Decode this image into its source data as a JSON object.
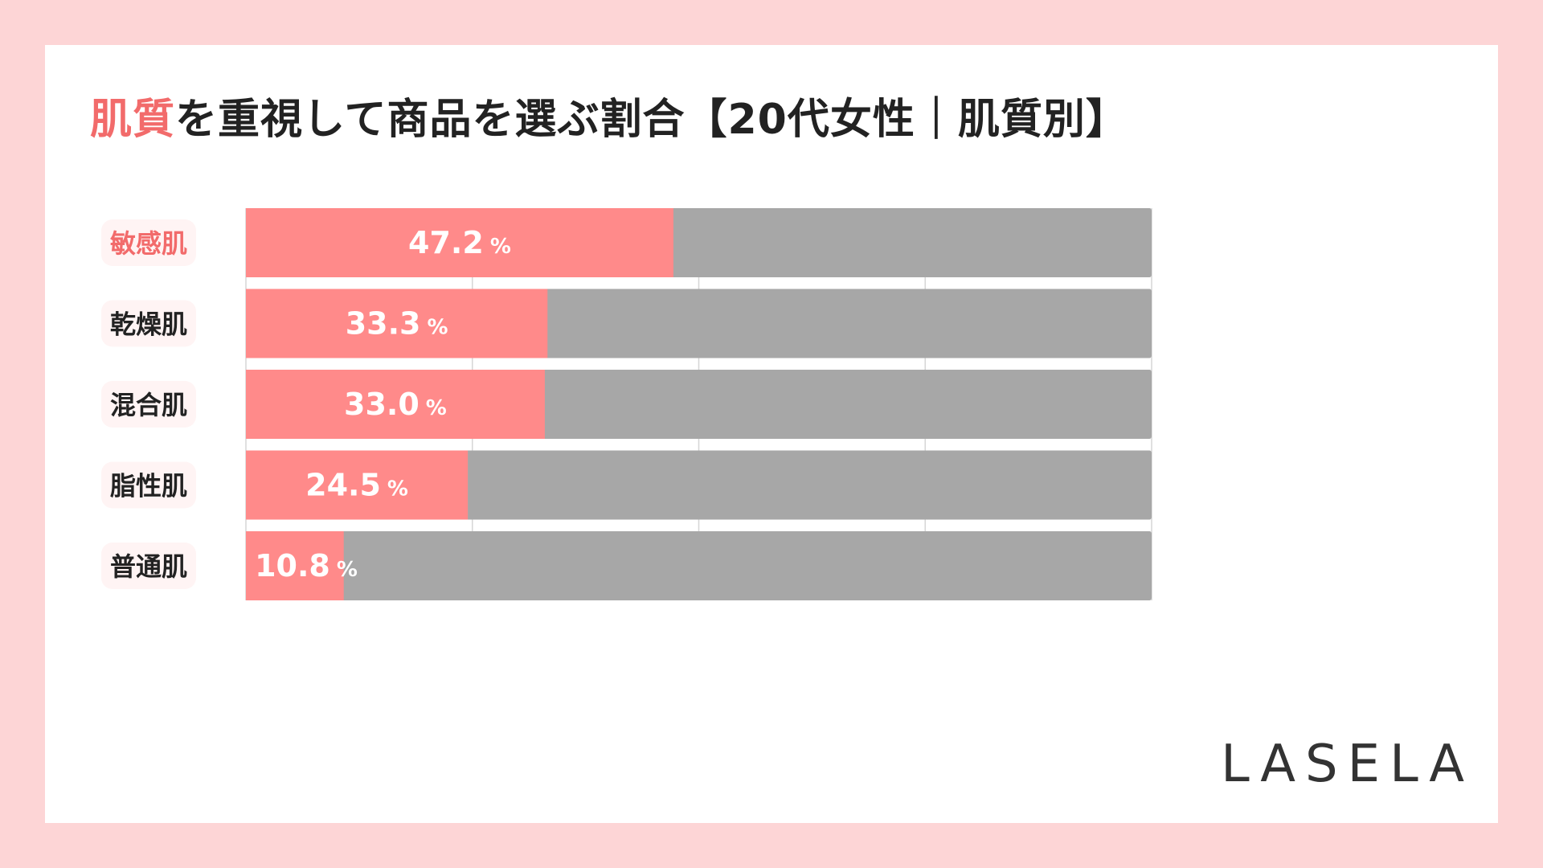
{
  "title": {
    "accent": "肌質",
    "rest": "を重視して商品を選ぶ割合【20代女性｜肌質別】"
  },
  "chart_data": {
    "type": "bar",
    "orientation": "horizontal",
    "stacked_to": 100,
    "categories": [
      "敏感肌",
      "乾燥肌",
      "混合肌",
      "脂性肌",
      "普通肌"
    ],
    "values": [
      47.2,
      33.3,
      33.0,
      24.5,
      10.8
    ],
    "value_labels": [
      "47.2",
      "33.3",
      "33.0",
      "24.5",
      "10.8"
    ],
    "unit": "%",
    "xlim": [
      0,
      100
    ],
    "grid": true,
    "highlight_category": "敏感肌",
    "colors": {
      "bar": "#ff8a8a",
      "remainder": "#a7a7a7",
      "highlight_text": "#f26b6b",
      "label_bg": "#fff4f4",
      "text": "#222222"
    }
  },
  "logo": "LASELA"
}
